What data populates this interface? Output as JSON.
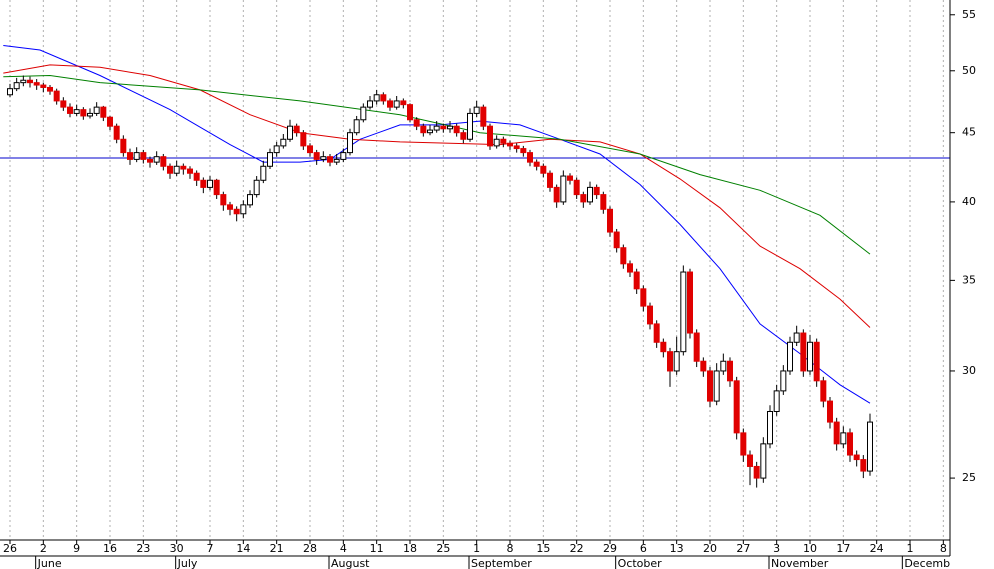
{
  "chart_data": {
    "type": "candlestick",
    "log_scale": true,
    "grid": true,
    "ylim": [
      22.5,
      56.4
    ],
    "yticks": [
      25,
      30,
      35,
      40,
      45,
      50,
      55
    ],
    "xlim": [
      -1.5,
      141
    ],
    "xticks": [
      {
        "value": 0,
        "label": "26"
      },
      {
        "value": 5,
        "label": "2"
      },
      {
        "value": 10,
        "label": "9"
      },
      {
        "value": 15,
        "label": "16"
      },
      {
        "value": 20,
        "label": "23"
      },
      {
        "value": 25,
        "label": "30"
      },
      {
        "value": 30,
        "label": "7"
      },
      {
        "value": 35,
        "label": "14"
      },
      {
        "value": 40,
        "label": "21"
      },
      {
        "value": 45,
        "label": "28"
      },
      {
        "value": 50,
        "label": "4"
      },
      {
        "value": 55,
        "label": "11"
      },
      {
        "value": 60,
        "label": "18"
      },
      {
        "value": 65,
        "label": "25"
      },
      {
        "value": 70,
        "label": "1"
      },
      {
        "value": 75,
        "label": "8"
      },
      {
        "value": 80,
        "label": "15"
      },
      {
        "value": 85,
        "label": "22"
      },
      {
        "value": 90,
        "label": "29"
      },
      {
        "value": 95,
        "label": "6"
      },
      {
        "value": 100,
        "label": "13"
      },
      {
        "value": 105,
        "label": "20"
      },
      {
        "value": 110,
        "label": "27"
      },
      {
        "value": 115,
        "label": "3"
      },
      {
        "value": 120,
        "label": "10"
      },
      {
        "value": 125,
        "label": "17"
      },
      {
        "value": 130,
        "label": "24"
      },
      {
        "value": 135,
        "label": "1"
      },
      {
        "value": 140,
        "label": "8"
      }
    ],
    "months": [
      {
        "value": 4,
        "label": "June"
      },
      {
        "value": 25,
        "label": "July"
      },
      {
        "value": 48,
        "label": "August"
      },
      {
        "value": 69,
        "label": "September"
      },
      {
        "value": 91,
        "label": "October"
      },
      {
        "value": 114,
        "label": "November"
      },
      {
        "value": 134,
        "label": "Decemb"
      }
    ],
    "up_color": "#ffffff",
    "down_color": "#e00000",
    "hline": {
      "value": 43.1,
      "color": "#0000cc"
    },
    "x": [
      0,
      1,
      2,
      3,
      4,
      5,
      6,
      7,
      8,
      9,
      10,
      11,
      12,
      13,
      14,
      15,
      16,
      17,
      18,
      19,
      20,
      21,
      22,
      23,
      24,
      25,
      26,
      27,
      28,
      29,
      30,
      31,
      32,
      33,
      34,
      35,
      36,
      37,
      38,
      39,
      40,
      41,
      42,
      43,
      44,
      45,
      46,
      47,
      48,
      49,
      50,
      51,
      52,
      53,
      54,
      55,
      56,
      57,
      58,
      59,
      60,
      61,
      62,
      63,
      64,
      65,
      66,
      67,
      68,
      69,
      70,
      71,
      72,
      73,
      74,
      75,
      76,
      77,
      78,
      79,
      80,
      81,
      82,
      83,
      84,
      85,
      86,
      87,
      88,
      89,
      90,
      91,
      92,
      93,
      94,
      95,
      96,
      97,
      98,
      99,
      100,
      101,
      102,
      103,
      104,
      105,
      106,
      107,
      108,
      109,
      110,
      111,
      112,
      113,
      114,
      115,
      116,
      117,
      118,
      119,
      120,
      121,
      122,
      123,
      124,
      125,
      126,
      127,
      128,
      129
    ],
    "candles": [
      [
        48,
        48.9,
        47.8,
        48.5
      ],
      [
        48.5,
        49.4,
        48.3,
        49
      ],
      [
        49,
        49.6,
        48.7,
        49.2
      ],
      [
        49.2,
        49.5,
        48.6,
        49
      ],
      [
        49,
        49.3,
        48.4,
        48.8
      ],
      [
        48.8,
        49,
        48.2,
        48.6
      ],
      [
        48.6,
        48.8,
        48,
        48.3
      ],
      [
        48.3,
        48.5,
        47.2,
        47.5
      ],
      [
        47.5,
        47.8,
        46.7,
        47
      ],
      [
        47,
        47.3,
        46.2,
        46.5
      ],
      [
        46.5,
        47.2,
        46.3,
        46.8
      ],
      [
        46.8,
        47,
        46,
        46.3
      ],
      [
        46.3,
        46.9,
        46.1,
        46.5
      ],
      [
        46.5,
        47.4,
        46.3,
        47
      ],
      [
        47,
        47.1,
        45.9,
        46.2
      ],
      [
        46.2,
        46.3,
        45.2,
        45.5
      ],
      [
        45.5,
        45.7,
        44.2,
        44.5
      ],
      [
        44.5,
        44.8,
        43.2,
        43.5
      ],
      [
        43.5,
        43.8,
        42.6,
        43
      ],
      [
        43,
        43.9,
        42.8,
        43.5
      ],
      [
        43.5,
        43.7,
        42.7,
        43
      ],
      [
        43,
        43.2,
        42.4,
        42.8
      ],
      [
        42.8,
        43.6,
        42.6,
        43.2
      ],
      [
        43.2,
        43.4,
        42.2,
        42.5
      ],
      [
        42.5,
        42.7,
        41.6,
        42
      ],
      [
        42,
        42.9,
        41.8,
        42.5
      ],
      [
        42.5,
        42.7,
        41.9,
        42.3
      ],
      [
        42.3,
        42.5,
        41.6,
        42
      ],
      [
        42,
        42.2,
        41.1,
        41.5
      ],
      [
        41.5,
        41.7,
        40.6,
        41
      ],
      [
        41,
        41.8,
        40.8,
        41.5
      ],
      [
        41.5,
        41.6,
        40.2,
        40.5
      ],
      [
        40.5,
        40.7,
        39.4,
        39.8
      ],
      [
        39.8,
        40,
        39.1,
        39.5
      ],
      [
        39.5,
        39.7,
        38.7,
        39.2
      ],
      [
        39.2,
        40.1,
        38.9,
        39.8
      ],
      [
        39.8,
        40.8,
        39.6,
        40.5
      ],
      [
        40.5,
        41.8,
        40.3,
        41.5
      ],
      [
        41.5,
        42.9,
        41.3,
        42.5
      ],
      [
        42.5,
        43.8,
        42.3,
        43.5
      ],
      [
        43.5,
        44.3,
        43.2,
        44
      ],
      [
        44,
        44.9,
        43.8,
        44.5
      ],
      [
        44.5,
        46,
        44.3,
        45.5
      ],
      [
        45.5,
        45.7,
        44.7,
        45
      ],
      [
        45,
        45.2,
        43.7,
        44
      ],
      [
        44,
        44.2,
        43.2,
        43.5
      ],
      [
        43.5,
        43.7,
        42.6,
        43
      ],
      [
        43,
        43.6,
        42.8,
        43.2
      ],
      [
        43.2,
        43.4,
        42.5,
        42.8
      ],
      [
        42.8,
        43.4,
        42.6,
        43
      ],
      [
        43,
        43.8,
        42.8,
        43.5
      ],
      [
        43.5,
        45.3,
        43.3,
        45
      ],
      [
        45,
        46.3,
        44.8,
        46
      ],
      [
        46,
        47.3,
        45.8,
        47
      ],
      [
        47,
        47.9,
        46.8,
        47.5
      ],
      [
        47.5,
        48.4,
        47.2,
        48
      ],
      [
        48,
        48.2,
        47.2,
        47.5
      ],
      [
        47.5,
        47.7,
        46.7,
        47
      ],
      [
        47,
        47.9,
        46.8,
        47.5
      ],
      [
        47.5,
        47.7,
        46.9,
        47.2
      ],
      [
        47.2,
        47.3,
        45.8,
        46
      ],
      [
        46,
        46.2,
        45.2,
        45.5
      ],
      [
        45.5,
        45.7,
        44.7,
        45
      ],
      [
        45,
        45.6,
        44.8,
        45.2
      ],
      [
        45.2,
        45.9,
        45,
        45.5
      ],
      [
        45.5,
        45.7,
        45,
        45.3
      ],
      [
        45.3,
        45.9,
        45,
        45.5
      ],
      [
        45.5,
        45.7,
        44.7,
        45
      ],
      [
        45,
        45.2,
        44.2,
        44.5
      ],
      [
        44.5,
        46.9,
        44.3,
        46.5
      ],
      [
        46.5,
        47.5,
        46.2,
        47
      ],
      [
        47,
        47.2,
        45.2,
        45.5
      ],
      [
        45.5,
        45.7,
        43.7,
        44
      ],
      [
        44,
        44.8,
        43.8,
        44.5
      ],
      [
        44.5,
        44.7,
        43.9,
        44.2
      ],
      [
        44.2,
        44.4,
        43.7,
        44
      ],
      [
        44,
        44.2,
        43.5,
        43.8
      ],
      [
        43.8,
        44,
        43.2,
        43.5
      ],
      [
        43.5,
        43.7,
        42.5,
        42.8
      ],
      [
        42.8,
        43,
        42.2,
        42.5
      ],
      [
        42.5,
        42.7,
        41.7,
        42
      ],
      [
        42,
        42.2,
        40.7,
        41
      ],
      [
        41,
        41.2,
        39.6,
        40
      ],
      [
        40,
        42.2,
        39.8,
        41.8
      ],
      [
        41.8,
        42,
        41.2,
        41.5
      ],
      [
        41.5,
        41.7,
        40.2,
        40.5
      ],
      [
        40.5,
        40.7,
        39.6,
        40
      ],
      [
        40,
        41.4,
        39.8,
        41
      ],
      [
        41,
        41.2,
        40.2,
        40.5
      ],
      [
        40.5,
        40.7,
        39.2,
        39.5
      ],
      [
        39.5,
        39.7,
        37.7,
        38
      ],
      [
        38,
        38.2,
        36.7,
        37
      ],
      [
        37,
        37.2,
        35.7,
        36
      ],
      [
        36,
        36.2,
        35.2,
        35.5
      ],
      [
        35.5,
        35.7,
        34.2,
        34.5
      ],
      [
        34.5,
        34.7,
        33.2,
        33.5
      ],
      [
        33.5,
        33.7,
        32.2,
        32.5
      ],
      [
        32.5,
        32.7,
        31.2,
        31.5
      ],
      [
        31.5,
        31.7,
        30.7,
        31
      ],
      [
        31,
        31.2,
        29.2,
        30
      ],
      [
        30,
        31.8,
        29.8,
        31
      ],
      [
        31,
        35.9,
        30.8,
        35.5
      ],
      [
        35.5,
        35.7,
        31.7,
        32
      ],
      [
        32,
        32.2,
        30.2,
        30.5
      ],
      [
        30.5,
        30.7,
        29.7,
        30
      ],
      [
        30,
        30.2,
        28.2,
        28.5
      ],
      [
        28.5,
        30.4,
        28.3,
        30
      ],
      [
        30,
        30.9,
        29.8,
        30.5
      ],
      [
        30.5,
        30.7,
        29.2,
        29.5
      ],
      [
        29.5,
        29.7,
        26.7,
        27
      ],
      [
        27,
        27.2,
        25.7,
        26
      ],
      [
        26,
        26.2,
        24.7,
        25.5
      ],
      [
        25.5,
        25.7,
        24.6,
        25
      ],
      [
        25,
        26.8,
        24.8,
        26.5
      ],
      [
        26.5,
        28.3,
        26.3,
        28
      ],
      [
        28,
        29.3,
        27.8,
        29
      ],
      [
        29,
        30.3,
        28.8,
        30
      ],
      [
        30,
        31.8,
        29.8,
        31.5
      ],
      [
        31.5,
        32.4,
        31.3,
        32
      ],
      [
        32,
        32.2,
        29.7,
        30
      ],
      [
        30,
        31.9,
        29.8,
        31.5
      ],
      [
        31.5,
        31.7,
        29.2,
        29.5
      ],
      [
        29.5,
        29.7,
        28.2,
        28.5
      ],
      [
        28.5,
        28.7,
        27.2,
        27.5
      ],
      [
        27.5,
        27.7,
        26.2,
        26.5
      ],
      [
        26.5,
        27.3,
        26.3,
        27
      ],
      [
        27,
        27.2,
        25.7,
        26
      ],
      [
        26,
        26.2,
        25.5,
        25.8
      ],
      [
        25.8,
        26,
        25,
        25.3
      ],
      [
        25.3,
        27.9,
        25.1,
        27.5
      ]
    ],
    "series": [
      {
        "color": "#0000ff",
        "x": [
          -1,
          4.5,
          13.5,
          24,
          33,
          38,
          43.5,
          48,
          52.5,
          58.5,
          64.5,
          70.5,
          76.5,
          82.5,
          88.5,
          94.5,
          100.5,
          106.5,
          112.5,
          118.5,
          124.5,
          129
        ],
        "values": [
          52.2,
          51.8,
          49.6,
          46.8,
          44.1,
          42.8,
          42.8,
          43.0,
          44.5,
          45.6,
          45.6,
          45.9,
          45.6,
          44.5,
          43.4,
          41.2,
          38.5,
          35.7,
          32.5,
          30.9,
          29.3,
          28.4
        ]
      },
      {
        "color": "#dd0000",
        "x": [
          -1,
          6,
          13.5,
          21,
          28.5,
          36,
          43.5,
          51,
          58.5,
          66,
          73.5,
          81,
          88.5,
          94.5,
          100.5,
          106.5,
          112.5,
          118.5,
          124.5,
          129
        ],
        "values": [
          49.8,
          50.5,
          50.3,
          49.6,
          48.4,
          46.4,
          45.0,
          44.5,
          44.3,
          44.2,
          44.1,
          44.5,
          44.3,
          43.4,
          41.6,
          39.6,
          37.1,
          35.7,
          33.9,
          32.3
        ]
      },
      {
        "color": "#008000",
        "x": [
          -1,
          6,
          13.5,
          28.5,
          43.5,
          58.5,
          70.5,
          82.5,
          94.5,
          103.5,
          112.5,
          121.5,
          129
        ],
        "values": [
          49.5,
          49.6,
          49.0,
          48.4,
          47.5,
          46.4,
          45.0,
          44.5,
          43.4,
          41.9,
          40.8,
          39.1,
          36.6
        ]
      }
    ]
  }
}
